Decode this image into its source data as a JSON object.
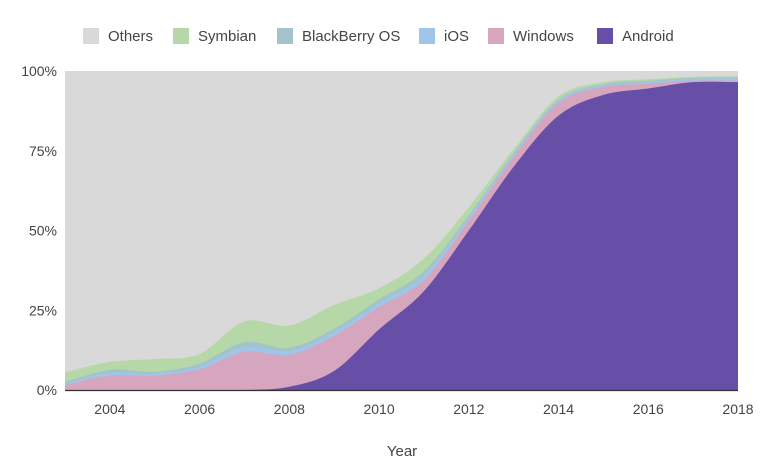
{
  "chart_data": {
    "type": "area",
    "stacked": true,
    "normalized": true,
    "title": "",
    "xlabel": "Year",
    "ylabel": "",
    "ylim": [
      0,
      100
    ],
    "xlim": [
      2003,
      2018
    ],
    "x_ticks": [
      "2004",
      "2006",
      "2008",
      "2010",
      "2012",
      "2014",
      "2016",
      "2018"
    ],
    "y_ticks": [
      "0%",
      "25%",
      "50%",
      "75%",
      "100%"
    ],
    "y_tick_values": [
      0,
      25,
      50,
      75,
      100
    ],
    "grid": false,
    "legend_placement": "top",
    "x": [
      2003,
      2004,
      2005,
      2006,
      2007,
      2008,
      2009,
      2010,
      2011,
      2012,
      2013,
      2014,
      2015,
      2016,
      2017,
      2018
    ],
    "series": [
      {
        "name": "Android",
        "color": "#674ea7",
        "values": [
          0,
          0,
          0,
          0,
          0,
          1,
          6,
          19,
          31,
          50,
          70,
          86,
          92.5,
          94.5,
          96.5,
          96.5
        ]
      },
      {
        "name": "Windows",
        "color": "#d5a6bd",
        "values": [
          1.5,
          4.5,
          4.5,
          6.5,
          12,
          10,
          11,
          7,
          3.5,
          3,
          3,
          4,
          2.5,
          1.5,
          0.5,
          0.5
        ]
      },
      {
        "name": "iOS",
        "color": "#9fc5e8",
        "values": [
          0.5,
          1,
          0.7,
          1,
          1.5,
          1.2,
          1.2,
          1.2,
          1.5,
          1,
          0.8,
          0.7,
          0.5,
          0.6,
          0.5,
          0.7
        ]
      },
      {
        "name": "BlackBerry OS",
        "color": "#a2c4c9",
        "values": [
          0.5,
          0.8,
          0.5,
          0.8,
          1.5,
          1,
          1,
          1.2,
          1.2,
          0.8,
          0.5,
          0.3,
          0.3,
          0.3,
          0.3,
          0.3
        ]
      },
      {
        "name": "Symbian",
        "color": "#b6d7a8",
        "values": [
          3,
          2.5,
          4,
          3,
          6.5,
          7,
          7.5,
          3.5,
          4,
          2.5,
          1.2,
          1,
          0.7,
          0.5,
          0.4,
          0.3
        ]
      },
      {
        "name": "Others",
        "color": "#d9d9d9",
        "values": [
          94.5,
          91.2,
          90.3,
          88.7,
          78.5,
          79.8,
          73.3,
          68.1,
          58.8,
          42.7,
          24.5,
          8,
          3.5,
          2.6,
          1.8,
          1.7
        ]
      }
    ],
    "legend": [
      "Others",
      "Symbian",
      "BlackBerry OS",
      "iOS",
      "Windows",
      "Android"
    ]
  }
}
